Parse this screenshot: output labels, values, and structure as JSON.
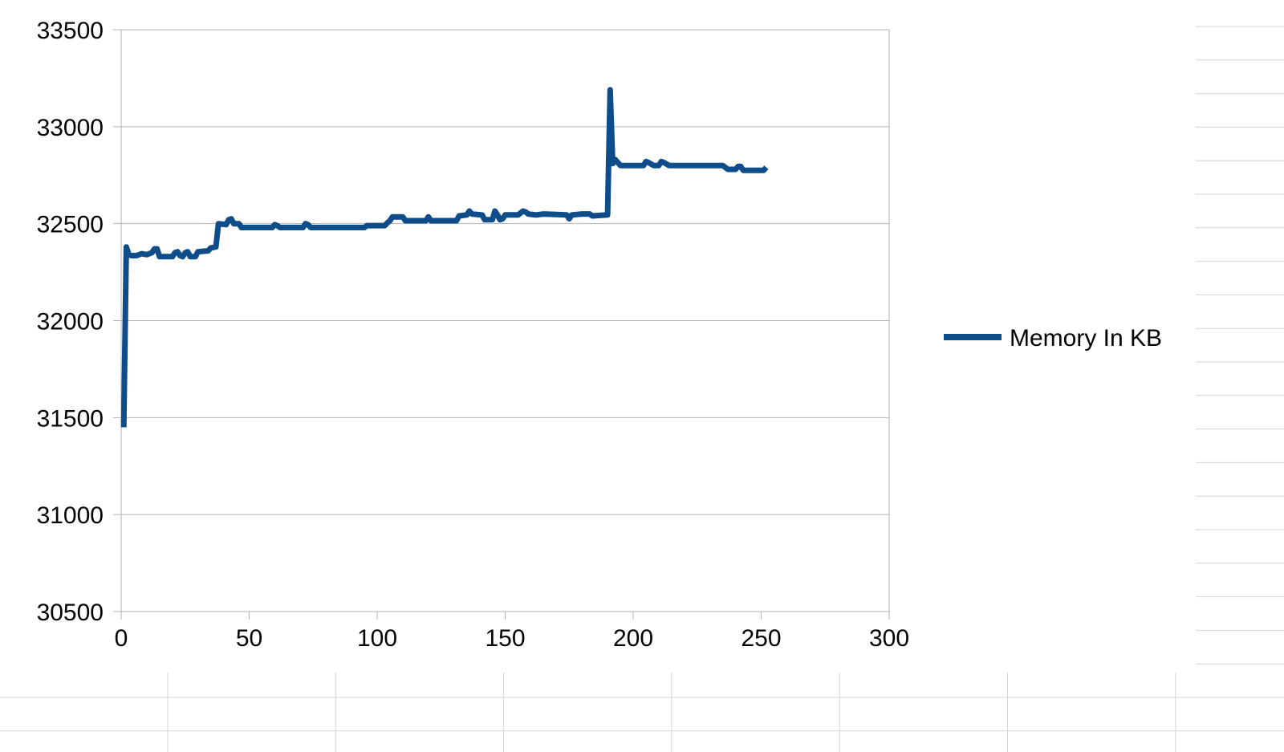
{
  "chart_data": {
    "type": "line",
    "title": "",
    "xlabel": "",
    "ylabel": "",
    "xlim": [
      0,
      300
    ],
    "ylim": [
      30500,
      33500
    ],
    "x_ticks": [
      "0",
      "50",
      "100",
      "150",
      "200",
      "250",
      "300"
    ],
    "y_ticks": [
      "30500",
      "31000",
      "31500",
      "32000",
      "32500",
      "33000",
      "33500"
    ],
    "grid": "horizontal",
    "legend_position": "right",
    "series": [
      {
        "name": "Memory In KB",
        "color": "#0f4c8a",
        "points": [
          [
            1,
            31450
          ],
          [
            2,
            32380
          ],
          [
            3,
            32340
          ],
          [
            4,
            32335
          ],
          [
            6,
            32335
          ],
          [
            8,
            32345
          ],
          [
            10,
            32340
          ],
          [
            12,
            32350
          ],
          [
            13,
            32370
          ],
          [
            14,
            32370
          ],
          [
            15,
            32330
          ],
          [
            20,
            32330
          ],
          [
            21,
            32350
          ],
          [
            22,
            32355
          ],
          [
            23,
            32335
          ],
          [
            24,
            32330
          ],
          [
            25,
            32350
          ],
          [
            26,
            32355
          ],
          [
            27,
            32330
          ],
          [
            29,
            32330
          ],
          [
            30,
            32355
          ],
          [
            34,
            32360
          ],
          [
            35,
            32375
          ],
          [
            37,
            32380
          ],
          [
            38,
            32500
          ],
          [
            41,
            32495
          ],
          [
            42,
            32520
          ],
          [
            43,
            32525
          ],
          [
            44,
            32500
          ],
          [
            46,
            32500
          ],
          [
            47,
            32480
          ],
          [
            55,
            32480
          ],
          [
            59,
            32480
          ],
          [
            60,
            32495
          ],
          [
            61,
            32490
          ],
          [
            62,
            32480
          ],
          [
            71,
            32480
          ],
          [
            72,
            32500
          ],
          [
            73,
            32495
          ],
          [
            74,
            32480
          ],
          [
            95,
            32480
          ],
          [
            96,
            32490
          ],
          [
            103,
            32490
          ],
          [
            104,
            32505
          ],
          [
            105,
            32515
          ],
          [
            106,
            32535
          ],
          [
            110,
            32535
          ],
          [
            111,
            32515
          ],
          [
            119,
            32515
          ],
          [
            120,
            32535
          ],
          [
            121,
            32515
          ],
          [
            131,
            32515
          ],
          [
            132,
            32540
          ],
          [
            135,
            32545
          ],
          [
            136,
            32565
          ],
          [
            137,
            32550
          ],
          [
            141,
            32545
          ],
          [
            142,
            32520
          ],
          [
            145,
            32520
          ],
          [
            146,
            32565
          ],
          [
            147,
            32545
          ],
          [
            148,
            32520
          ],
          [
            149,
            32525
          ],
          [
            150,
            32545
          ],
          [
            155,
            32545
          ],
          [
            157,
            32565
          ],
          [
            158,
            32560
          ],
          [
            159,
            32550
          ],
          [
            162,
            32545
          ],
          [
            165,
            32550
          ],
          [
            174,
            32545
          ],
          [
            175,
            32525
          ],
          [
            176,
            32545
          ],
          [
            180,
            32550
          ],
          [
            183,
            32550
          ],
          [
            184,
            32540
          ],
          [
            190,
            32545
          ],
          [
            191,
            33190
          ],
          [
            192,
            32810
          ],
          [
            193,
            32830
          ],
          [
            195,
            32800
          ],
          [
            200,
            32800
          ],
          [
            204,
            32800
          ],
          [
            205,
            32820
          ],
          [
            206,
            32815
          ],
          [
            208,
            32800
          ],
          [
            210,
            32800
          ],
          [
            211,
            32820
          ],
          [
            212,
            32815
          ],
          [
            214,
            32800
          ],
          [
            219,
            32800
          ],
          [
            235,
            32800
          ],
          [
            237,
            32780
          ],
          [
            240,
            32780
          ],
          [
            241,
            32795
          ],
          [
            242,
            32795
          ],
          [
            243,
            32775
          ],
          [
            251,
            32775
          ],
          [
            252,
            32790
          ]
        ]
      }
    ]
  }
}
